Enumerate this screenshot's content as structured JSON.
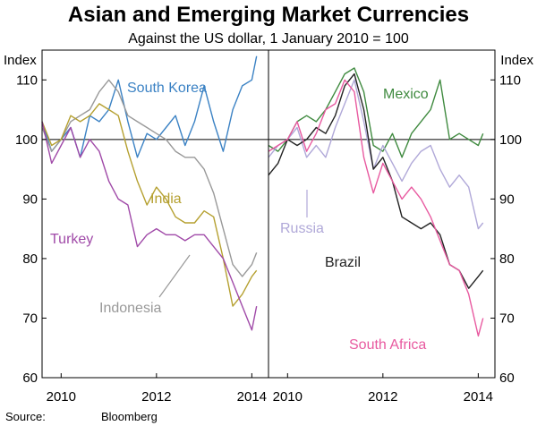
{
  "chart_data": {
    "type": "line",
    "title": "Asian and Emerging Market Currencies",
    "subtitle": "Against the US dollar, 1 January 2010 = 100",
    "source_label": "Source:",
    "source_name": "Bloomberg",
    "ylabel_left": "Index",
    "ylabel_right": "Index",
    "ylim": [
      60,
      115
    ],
    "yticks": [
      60,
      70,
      80,
      90,
      100,
      110
    ],
    "xlim": [
      2009.6,
      2014.35
    ],
    "xticks": [
      2010,
      2012,
      2014
    ],
    "xtick_labels": [
      "2010",
      "2012",
      "2014"
    ],
    "reference_line": 100,
    "panels": [
      {
        "name": "left",
        "series": [
          {
            "name": "South Korea",
            "color": "#3b82c4",
            "x": [
              2009.6,
              2009.8,
              2010.0,
              2010.2,
              2010.4,
              2010.6,
              2010.8,
              2011.0,
              2011.2,
              2011.4,
              2011.6,
              2011.8,
              2012.0,
              2012.2,
              2012.4,
              2012.6,
              2012.8,
              2013.0,
              2013.2,
              2013.4,
              2013.6,
              2013.8,
              2014.0,
              2014.1
            ],
            "values": [
              103,
              98,
              100,
              102,
              97,
              104,
              103,
              105,
              110,
              103,
              97,
              101,
              100,
              102,
              104,
              99,
              103,
              109,
              103,
              98,
              105,
              109,
              110,
              114
            ]
          },
          {
            "name": "Indonesia",
            "color": "#999999",
            "x": [
              2009.6,
              2009.8,
              2010.0,
              2010.2,
              2010.4,
              2010.6,
              2010.8,
              2011.0,
              2011.2,
              2011.4,
              2011.6,
              2011.8,
              2012.0,
              2012.2,
              2012.4,
              2012.6,
              2012.8,
              2013.0,
              2013.2,
              2013.4,
              2013.6,
              2013.8,
              2014.0,
              2014.1
            ],
            "values": [
              102,
              98,
              100,
              103,
              104,
              105,
              108,
              110,
              108,
              104,
              103,
              102,
              101,
              100,
              98,
              97,
              97,
              95,
              91,
              85,
              79,
              77,
              79,
              81
            ]
          },
          {
            "name": "India",
            "color": "#b5a030",
            "x": [
              2009.6,
              2009.8,
              2010.0,
              2010.2,
              2010.4,
              2010.6,
              2010.8,
              2011.0,
              2011.2,
              2011.4,
              2011.6,
              2011.8,
              2012.0,
              2012.2,
              2012.4,
              2012.6,
              2012.8,
              2013.0,
              2013.2,
              2013.4,
              2013.6,
              2013.8,
              2014.0,
              2014.1
            ],
            "values": [
              103,
              99,
              100,
              104,
              103,
              104,
              106,
              105,
              104,
              98,
              93,
              89,
              92,
              90,
              87,
              86,
              86,
              88,
              87,
              80,
              72,
              74,
              77,
              78
            ]
          },
          {
            "name": "Turkey",
            "color": "#a04aa8",
            "x": [
              2009.6,
              2009.8,
              2010.0,
              2010.2,
              2010.4,
              2010.6,
              2010.8,
              2011.0,
              2011.2,
              2011.4,
              2011.6,
              2011.8,
              2012.0,
              2012.2,
              2012.4,
              2012.6,
              2012.8,
              2013.0,
              2013.2,
              2013.4,
              2013.6,
              2013.8,
              2014.0,
              2014.1
            ],
            "values": [
              103,
              96,
              99,
              102,
              97,
              100,
              98,
              93,
              90,
              89,
              82,
              84,
              85,
              84,
              84,
              83,
              84,
              84,
              82,
              80,
              76,
              72,
              68,
              72
            ]
          }
        ]
      },
      {
        "name": "right",
        "series": [
          {
            "name": "Mexico",
            "color": "#3f8a3f",
            "x": [
              2009.6,
              2009.8,
              2010.0,
              2010.2,
              2010.4,
              2010.6,
              2010.8,
              2011.0,
              2011.2,
              2011.4,
              2011.6,
              2011.8,
              2012.0,
              2012.2,
              2012.4,
              2012.6,
              2012.8,
              2013.0,
              2013.2,
              2013.4,
              2013.6,
              2013.8,
              2014.0,
              2014.1
            ],
            "values": [
              99,
              98,
              100,
              103,
              104,
              103,
              105,
              108,
              111,
              112,
              108,
              99,
              98,
              101,
              97,
              101,
              103,
              105,
              110,
              100,
              101,
              100,
              99,
              101
            ]
          },
          {
            "name": "Russia",
            "color": "#b0a8d8",
            "x": [
              2009.6,
              2009.8,
              2010.0,
              2010.2,
              2010.4,
              2010.6,
              2010.8,
              2011.0,
              2011.2,
              2011.4,
              2011.6,
              2011.8,
              2012.0,
              2012.2,
              2012.4,
              2012.6,
              2012.8,
              2013.0,
              2013.2,
              2013.4,
              2013.6,
              2013.8,
              2014.0,
              2014.1
            ],
            "values": [
              97,
              99,
              100,
              102,
              97,
              99,
              97,
              102,
              106,
              110,
              103,
              95,
              99,
              96,
              93,
              96,
              98,
              99,
              95,
              92,
              94,
              92,
              85,
              86
            ]
          },
          {
            "name": "Brazil",
            "color": "#222222",
            "x": [
              2009.6,
              2009.8,
              2010.0,
              2010.2,
              2010.4,
              2010.6,
              2010.8,
              2011.0,
              2011.2,
              2011.4,
              2011.6,
              2011.8,
              2012.0,
              2012.2,
              2012.4,
              2012.6,
              2012.8,
              2013.0,
              2013.2,
              2013.4,
              2013.6,
              2013.8,
              2014.0,
              2014.1
            ],
            "values": [
              94,
              96,
              100,
              99,
              100,
              102,
              101,
              104,
              109,
              111,
              105,
              95,
              97,
              93,
              87,
              86,
              85,
              86,
              84,
              79,
              78,
              75,
              77,
              78
            ]
          },
          {
            "name": "South Africa",
            "color": "#e85aa0",
            "x": [
              2009.6,
              2009.8,
              2010.0,
              2010.2,
              2010.4,
              2010.6,
              2010.8,
              2011.0,
              2011.2,
              2011.4,
              2011.6,
              2011.8,
              2012.0,
              2012.2,
              2012.4,
              2012.6,
              2012.8,
              2013.0,
              2013.2,
              2013.4,
              2013.6,
              2013.8,
              2014.0,
              2014.1
            ],
            "values": [
              98,
              99,
              100,
              103,
              98,
              101,
              105,
              106,
              110,
              108,
              97,
              91,
              96,
              93,
              90,
              92,
              90,
              87,
              83,
              79,
              78,
              74,
              67,
              70
            ]
          }
        ]
      }
    ]
  }
}
